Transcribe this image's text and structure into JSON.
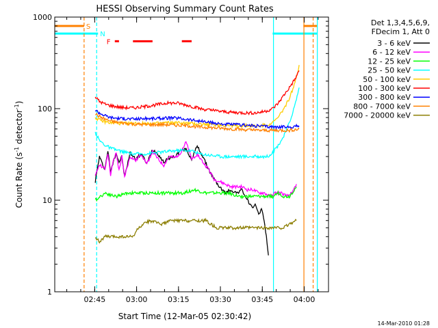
{
  "chart_data": {
    "type": "line",
    "title": "HESSI Observing Summary Count Rates",
    "xlabel": "Start Time (12-Mar-05 02:30:42)",
    "ylabel": "Count Rate (s",
    "ylabel_sup1": "-1",
    "ylabel_mid": " detector",
    "ylabel_sup2": "-1",
    "ylabel_end": ")",
    "timestamp": "14-Mar-2010 01:28",
    "x_unit": "minutes since 02:30:42",
    "xlim": [
      0,
      98
    ],
    "ylim": [
      1,
      1000
    ],
    "y_scale": "log",
    "grid": false,
    "x_ticks": [
      {
        "label": "02:45",
        "value": 14.3
      },
      {
        "label": "03:00",
        "value": 29.3
      },
      {
        "label": "03:15",
        "value": 44.3
      },
      {
        "label": "03:30",
        "value": 59.3
      },
      {
        "label": "03:45",
        "value": 74.3
      },
      {
        "label": "04:00",
        "value": 89.3
      }
    ],
    "y_ticks": [
      {
        "label": "1",
        "value": 1
      },
      {
        "label": "10",
        "value": 10
      },
      {
        "label": "100",
        "value": 100
      },
      {
        "label": "1000",
        "value": 1000
      }
    ],
    "legend_header": [
      "Det 1,3,4,5,6,9,",
      "FDecim 1, Att 0"
    ],
    "legend_position": "right",
    "series": [
      {
        "name": "3 - 6 keV",
        "color": "#000000",
        "x": [
          14.5,
          16,
          17,
          18,
          19,
          20,
          21,
          22,
          23,
          24,
          25,
          27,
          29,
          31,
          33,
          35,
          37,
          39,
          41,
          43,
          45,
          47,
          49,
          51,
          53,
          55,
          57,
          59,
          61,
          63,
          65,
          67,
          69,
          71,
          72,
          73,
          74,
          75,
          76,
          76.5
        ],
        "y": [
          16,
          30,
          25,
          22,
          35,
          20,
          27,
          33,
          26,
          30,
          18,
          33,
          28,
          32,
          25,
          36,
          32,
          26,
          29,
          30,
          35,
          36,
          28,
          39,
          30,
          22,
          17,
          14,
          12,
          13,
          12,
          13,
          10,
          8,
          9,
          7,
          8,
          6,
          3.5,
          2.5
        ]
      },
      {
        "name": "6 - 12 keV",
        "color": "#ff00ff",
        "x": [
          14.5,
          16,
          17,
          18,
          19,
          20,
          21,
          22,
          23,
          24,
          25,
          27,
          29,
          31,
          33,
          35,
          37,
          39,
          41,
          43,
          45,
          47,
          49,
          51,
          53,
          55,
          57,
          59,
          61,
          63,
          65,
          67,
          69,
          71,
          73,
          75,
          77,
          79,
          81,
          83,
          85,
          86.5
        ],
        "y": [
          18,
          25,
          23,
          22,
          33,
          19,
          27,
          33,
          21,
          30,
          18,
          30,
          27,
          32,
          25,
          34,
          28,
          24,
          30,
          29,
          33,
          43,
          28,
          32,
          26,
          22,
          17,
          16,
          15,
          14,
          14,
          14,
          13,
          13,
          12,
          12,
          11,
          12,
          12,
          11,
          12,
          15
        ]
      },
      {
        "name": "12 - 25 keV",
        "color": "#00ff00",
        "x": [
          14.5,
          18,
          22,
          26,
          30,
          34,
          38,
          42,
          46,
          50,
          54,
          58,
          62,
          66,
          70,
          74,
          76,
          78,
          80,
          82,
          84,
          86.5
        ],
        "y": [
          10,
          12,
          11,
          12,
          12,
          12,
          12,
          12,
          12,
          13,
          12,
          12,
          12,
          11,
          11,
          11,
          11,
          11,
          12,
          11,
          11,
          14
        ]
      },
      {
        "name": "25 - 50 keV",
        "color": "#00ffff",
        "x": [
          14.5,
          16,
          18,
          20,
          24,
          28,
          32,
          36,
          40,
          44,
          48,
          50,
          52,
          56,
          60,
          64,
          68,
          72,
          74,
          76,
          78,
          80,
          82,
          84,
          86,
          87.5
        ],
        "y": [
          55,
          45,
          40,
          37,
          34,
          32,
          32,
          33,
          34,
          35,
          35,
          34,
          32,
          31,
          30,
          30,
          30,
          30,
          30,
          30,
          33,
          40,
          50,
          70,
          110,
          170
        ]
      },
      {
        "name": "50 - 100 keV",
        "color": "#ffcc00",
        "x": [
          14.5,
          16,
          18,
          20,
          24,
          28,
          32,
          36,
          40,
          44,
          48,
          52,
          56,
          60,
          64,
          68,
          72,
          74,
          76,
          78,
          80,
          82,
          84,
          86,
          87.5
        ],
        "y": [
          80,
          75,
          72,
          70,
          69,
          69,
          69,
          69,
          70,
          70,
          69,
          68,
          67,
          66,
          65,
          65,
          65,
          65,
          67,
          70,
          80,
          100,
          130,
          190,
          300
        ]
      },
      {
        "name": "100 - 300 keV",
        "color": "#ff0000",
        "x": [
          14.5,
          16,
          18,
          20,
          24,
          28,
          32,
          36,
          40,
          44,
          48,
          52,
          56,
          60,
          64,
          68,
          72,
          74,
          76,
          78,
          80,
          82,
          84,
          86,
          87.5
        ],
        "y": [
          135,
          120,
          112,
          108,
          103,
          102,
          105,
          110,
          115,
          115,
          108,
          100,
          96,
          93,
          91,
          90,
          90,
          92,
          95,
          100,
          115,
          140,
          170,
          210,
          260
        ]
      },
      {
        "name": "300 - 800 keV",
        "color": "#0000ff",
        "x": [
          14.5,
          16,
          18,
          20,
          24,
          28,
          32,
          36,
          40,
          44,
          48,
          52,
          56,
          60,
          64,
          68,
          72,
          76,
          80,
          84,
          87.5
        ],
        "y": [
          97,
          90,
          84,
          80,
          78,
          77,
          78,
          78,
          79,
          79,
          76,
          73,
          70,
          68,
          67,
          66,
          65,
          64,
          63,
          63,
          65
        ]
      },
      {
        "name": "800 - 7000 keV",
        "color": "#ff8000",
        "x": [
          14.5,
          16,
          18,
          20,
          24,
          28,
          32,
          36,
          40,
          44,
          48,
          52,
          56,
          60,
          64,
          68,
          72,
          76,
          80,
          84,
          87.5
        ],
        "y": [
          88,
          82,
          77,
          73,
          70,
          68,
          67,
          67,
          67,
          66,
          65,
          63,
          62,
          61,
          60,
          59,
          58,
          58,
          58,
          58,
          60
        ]
      },
      {
        "name": "7000 - 20000 keV",
        "color": "#8b7d00",
        "x": [
          14.5,
          16,
          18,
          20,
          24,
          28,
          30,
          34,
          38,
          42,
          46,
          50,
          54,
          58,
          62,
          66,
          70,
          74,
          76,
          78,
          80,
          82,
          84,
          86.5
        ],
        "y": [
          4,
          3.5,
          4,
          4,
          4,
          4,
          5,
          6,
          5.5,
          6,
          6,
          6,
          6,
          5,
          5,
          5,
          5,
          5,
          5,
          5,
          5,
          5,
          5.5,
          6
        ]
      }
    ],
    "markers": [
      {
        "label": "S",
        "color": "#ff8000",
        "y": 800,
        "segments": [
          [
            0,
            10.5
          ],
          [
            89,
            94
          ]
        ]
      },
      {
        "label": "N",
        "color": "#00ffff",
        "y": 660,
        "segments": [
          [
            0,
            15.5
          ],
          [
            78,
            94
          ]
        ]
      },
      {
        "label": "F",
        "color": "#ff0000",
        "y": 545,
        "segments": [
          [
            21.5,
            23
          ],
          [
            28,
            35
          ],
          [
            45.5,
            49
          ]
        ]
      }
    ],
    "vertical_lines": [
      {
        "color": "#ff8000",
        "x": 10.5,
        "style": "dashed"
      },
      {
        "color": "#00ffff",
        "x": 15,
        "style": "dashed"
      },
      {
        "color": "#00ffff",
        "x": 78.3,
        "style": "solid"
      },
      {
        "color": "#ff8000",
        "x": 89.2,
        "style": "solid"
      },
      {
        "color": "#ff8000",
        "x": 92.5,
        "style": "dashed"
      },
      {
        "color": "#00ffff",
        "x": 94,
        "style": "solid"
      }
    ]
  }
}
